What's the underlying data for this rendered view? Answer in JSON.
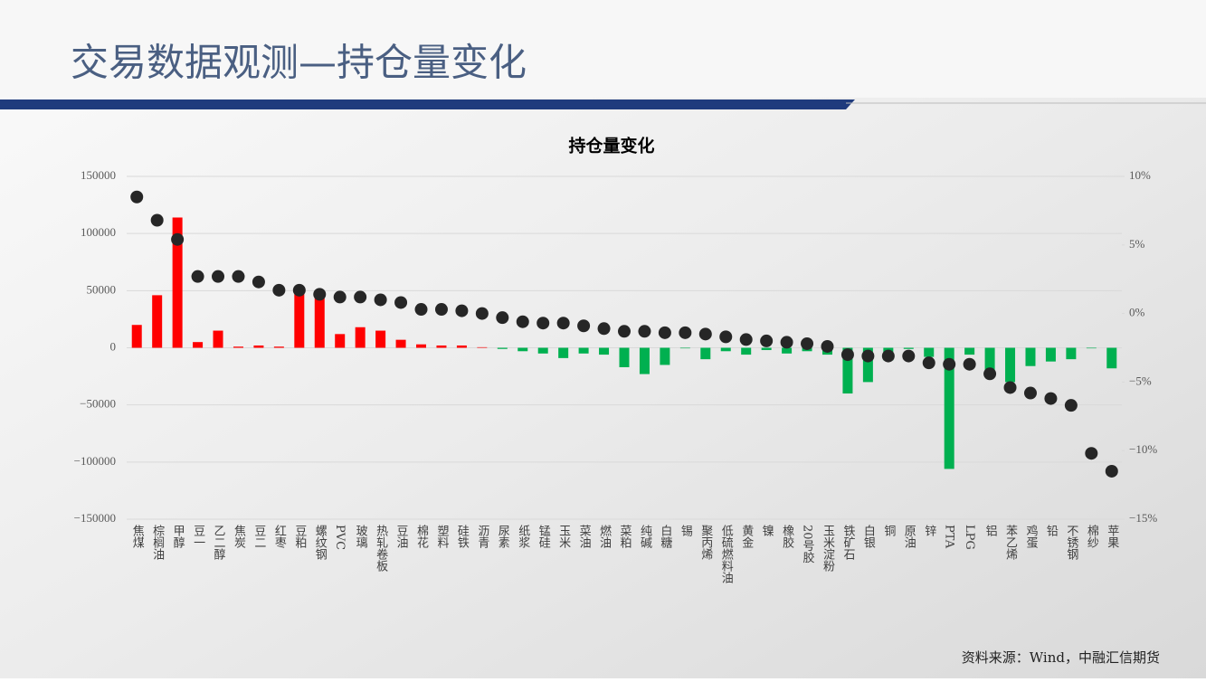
{
  "header": {
    "title": "交易数据观测—持仓量变化"
  },
  "chart_data": {
    "type": "bar",
    "title": "持仓量变化",
    "categories": [
      "焦煤",
      "棕榈油",
      "甲醇",
      "豆一",
      "乙二醇",
      "焦炭",
      "豆二",
      "红枣",
      "豆粕",
      "螺纹钢",
      "PVC",
      "玻璃",
      "热轧卷板",
      "豆油",
      "棉花",
      "塑料",
      "硅铁",
      "沥青",
      "尿素",
      "纸浆",
      "锰硅",
      "玉米",
      "菜油",
      "燃油",
      "菜粕",
      "纯碱",
      "白糖",
      "锡",
      "聚丙烯",
      "低硫燃料油",
      "黄金",
      "镍",
      "橡胶",
      "20号胶",
      "玉米淀粉",
      "铁矿石",
      "白银",
      "铜",
      "原油",
      "锌",
      "PTA",
      "LPG",
      "铝",
      "苯乙烯",
      "鸡蛋",
      "铅",
      "不锈钢",
      "棉纱",
      "苹果"
    ],
    "series": [
      {
        "type": "bar",
        "positive_color": "#ff0000",
        "negative_color": "#00b050",
        "values": [
          20000,
          46000,
          114000,
          5000,
          15000,
          1000,
          2000,
          1000,
          53000,
          50000,
          12000,
          18000,
          15000,
          7000,
          3000,
          2000,
          2000,
          500,
          -1000,
          -3000,
          -5000,
          -9000,
          -5000,
          -6000,
          -17000,
          -23000,
          -15000,
          -500,
          -10000,
          -3000,
          -6000,
          -2000,
          -5000,
          -3000,
          -6000,
          -40000,
          -30000,
          -11000,
          -1000,
          -8000,
          -106000,
          -6000,
          -22000,
          -30000,
          -16000,
          -12000,
          -10000,
          -500,
          -18000
        ]
      },
      {
        "type": "scatter",
        "axis": "y2",
        "color": "#262626",
        "values": [
          8.5,
          6.8,
          5.4,
          2.7,
          2.7,
          2.7,
          2.3,
          1.7,
          1.7,
          1.4,
          1.2,
          1.2,
          1.0,
          0.8,
          0.3,
          0.3,
          0.2,
          0.0,
          -0.3,
          -0.6,
          -0.7,
          -0.7,
          -0.9,
          -1.1,
          -1.3,
          -1.3,
          -1.4,
          -1.4,
          -1.5,
          -1.7,
          -1.9,
          -2.0,
          -2.1,
          -2.2,
          -2.4,
          -3.0,
          -3.1,
          -3.1,
          -3.1,
          -3.6,
          -3.7,
          -3.7,
          -4.4,
          -5.4,
          -5.8,
          -6.2,
          -6.7,
          -10.2,
          -11.5
        ]
      }
    ],
    "ylim": [
      -150000,
      150000
    ],
    "yticks": [
      150000,
      100000,
      50000,
      0,
      {
        "value": -50000,
        "label": "−50000"
      },
      {
        "value": -100000,
        "label": "−100000"
      },
      {
        "value": -150000,
        "label": "−150000"
      }
    ],
    "y2lim": [
      -15,
      10
    ],
    "y2ticks": [
      {
        "value": 10,
        "label": "10%"
      },
      {
        "value": 5,
        "label": "5%"
      },
      {
        "value": 0,
        "label": "0%"
      },
      {
        "value": -5,
        "label": "−5%"
      },
      {
        "value": -10,
        "label": "−10%"
      },
      {
        "value": -15,
        "label": "−15%"
      }
    ],
    "grid": true
  },
  "footer": {
    "source": "资料来源：Wind，中融汇信期货"
  }
}
